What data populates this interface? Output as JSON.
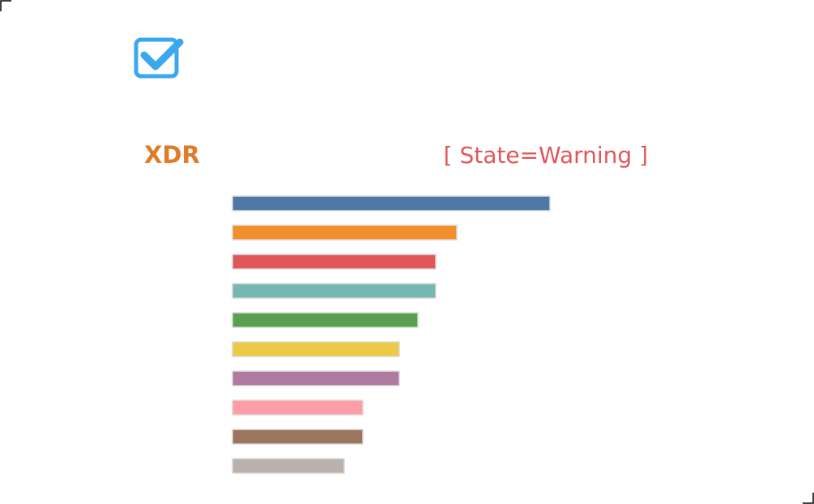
{
  "chart_data": {
    "type": "bar",
    "orientation": "horizontal",
    "title": "XDR",
    "annotation": "[ State=Warning ]",
    "categories": [
      null,
      null,
      null,
      null,
      null,
      null,
      null,
      null,
      null,
      null
    ],
    "values": [
      392,
      277,
      251,
      251,
      229,
      206,
      206,
      161,
      161,
      138
    ],
    "colors": [
      "#4e79a7",
      "#f28e2b",
      "#e15759",
      "#76b7b2",
      "#59a14f",
      "#edc948",
      "#b07aa1",
      "#ff9da7",
      "#9c755f",
      "#bab0ac"
    ],
    "xlim": [
      0,
      392
    ]
  }
}
